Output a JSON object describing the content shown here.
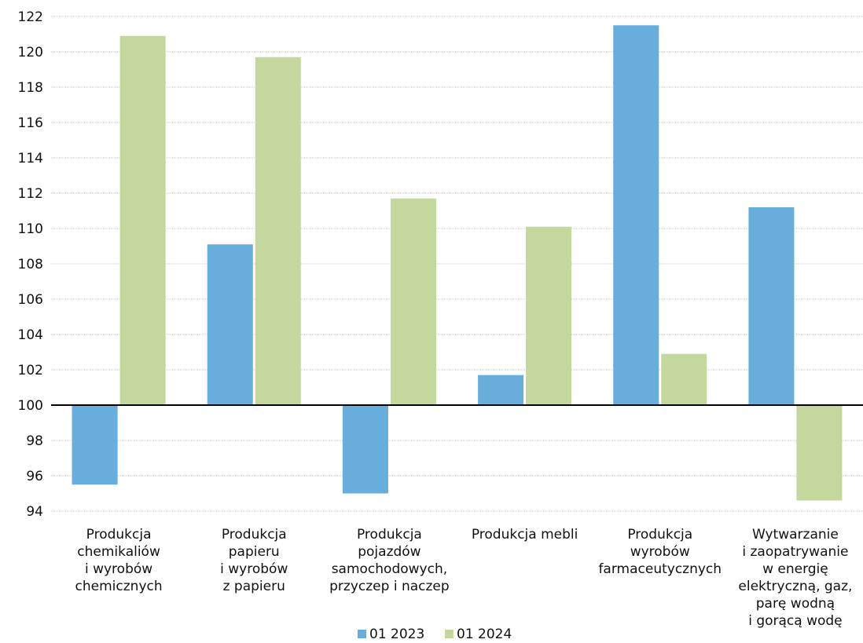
{
  "chart_data": {
    "type": "bar",
    "baseline": 100,
    "ylim": [
      94,
      122
    ],
    "yticks": [
      94,
      96,
      98,
      100,
      102,
      104,
      106,
      108,
      110,
      112,
      114,
      116,
      118,
      120,
      122
    ],
    "grid": true,
    "legend_position": "bottom",
    "categories": [
      [
        "Produkcja",
        "chemikaliów",
        "i wyrobów",
        "chemicznych"
      ],
      [
        "Produkcja",
        "papieru",
        "i wyrobów",
        "z papieru"
      ],
      [
        "Produkcja",
        "pojazdów",
        "samochodowych,",
        "przyczep i naczep"
      ],
      [
        "Produkcja mebli"
      ],
      [
        "Produkcja",
        "wyrobów",
        "farmaceutycznych"
      ],
      [
        "Wytwarzanie",
        "i zaopatrywanie",
        "w energię",
        "elektryczną, gaz,",
        "parę wodną",
        "i gorącą wodę"
      ]
    ],
    "series": [
      {
        "name": "01 2023",
        "color": "#67aedd",
        "values": [
          95.5,
          109.1,
          95.0,
          101.7,
          121.5,
          111.2
        ]
      },
      {
        "name": "01 2024",
        "color": "#c4d89d",
        "values": [
          120.9,
          119.7,
          111.7,
          110.1,
          102.9,
          94.6
        ]
      }
    ]
  }
}
